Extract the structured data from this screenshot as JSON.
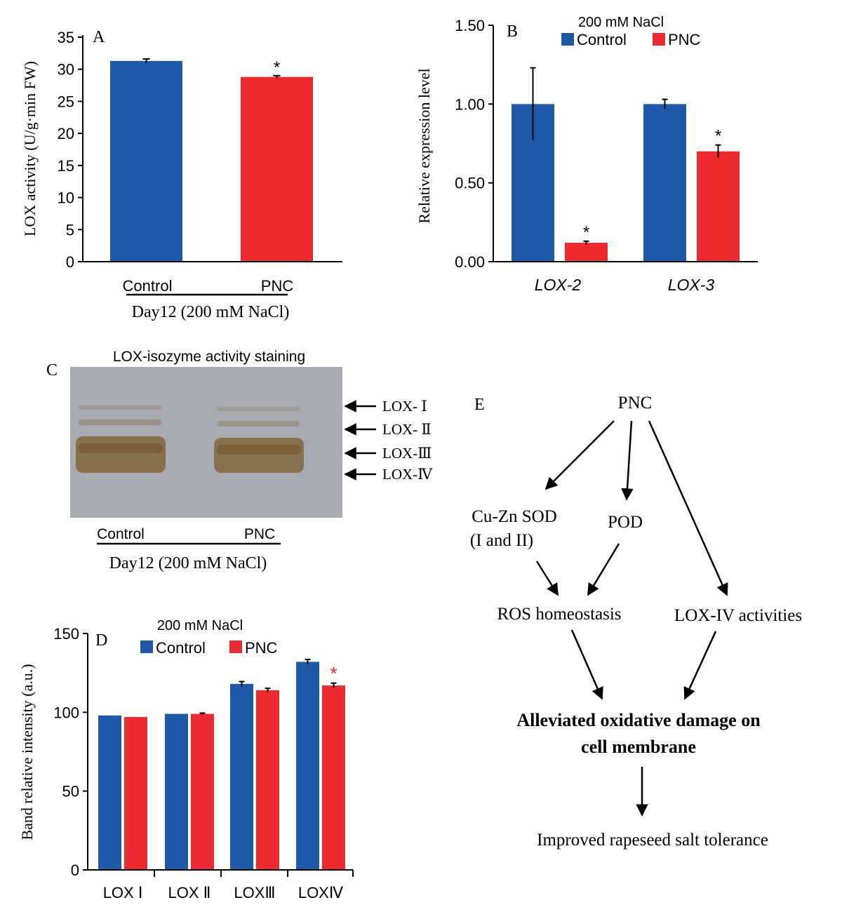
{
  "colors": {
    "control": "#1f5aa8",
    "pnc": "#ec2a30",
    "gel_bg": "#a7aab0",
    "band": "#7c5d2a"
  },
  "chart_data": [
    {
      "id": "A",
      "type": "bar",
      "panel_label": "A",
      "categories": [
        "Control",
        "PNC"
      ],
      "values": [
        31.3,
        28.8
      ],
      "errors": [
        0.3,
        0.2
      ],
      "significance": [
        "",
        "*"
      ],
      "ylabel": "LOX activity (U/g·min FW)",
      "xlabel": "Day12 (200 mM NaCl)",
      "yticks": [
        "0",
        "5",
        "10",
        "15",
        "20",
        "25",
        "30",
        "35"
      ],
      "ylim": [
        0,
        35
      ]
    },
    {
      "id": "B",
      "type": "bar",
      "panel_label": "B",
      "title": "200 mM NaCl",
      "categories": [
        "LOX-2",
        "LOX-3"
      ],
      "series": [
        {
          "name": "Control",
          "values": [
            1.0,
            1.0
          ],
          "errors": [
            0.23,
            0.03
          ],
          "significance": [
            "",
            ""
          ]
        },
        {
          "name": "PNC",
          "values": [
            0.12,
            0.7
          ],
          "errors": [
            0.01,
            0.04
          ],
          "significance": [
            "*",
            "*"
          ]
        }
      ],
      "ylabel": "Relative expression level",
      "yticks": [
        "0.00",
        "0.50",
        "1.00",
        "1.50"
      ],
      "ylim": [
        0,
        1.5
      ],
      "legend": "top"
    },
    {
      "id": "D",
      "type": "bar",
      "panel_label": "D",
      "title": "200 mM NaCl",
      "categories": [
        "LOX Ⅰ",
        "LOX Ⅱ",
        "LOXⅢ",
        "LOXⅣ"
      ],
      "series": [
        {
          "name": "Control",
          "values": [
            98,
            99,
            118,
            132
          ],
          "errors": [
            0,
            0,
            1.5,
            1.5
          ],
          "significance": [
            "",
            "",
            "",
            ""
          ]
        },
        {
          "name": "PNC",
          "values": [
            97,
            99,
            114,
            117
          ],
          "errors": [
            0,
            0.5,
            1.2,
            1.5
          ],
          "significance": [
            "",
            "",
            "",
            "*"
          ]
        }
      ],
      "ylabel": "Band relative intensity (a.u.)",
      "yticks": [
        "0",
        "50",
        "100",
        "150"
      ],
      "ylim": [
        0,
        150
      ],
      "legend": "top"
    }
  ],
  "gel": {
    "panel_label": "C",
    "title": "LOX-isozyme activity staining",
    "bands": [
      "LOX- Ⅰ",
      "LOX- Ⅱ",
      "LOX-Ⅲ",
      "LOX-Ⅳ"
    ],
    "lanes": [
      "Control",
      "PNC"
    ],
    "caption": "Day12 (200 mM NaCl)"
  },
  "diagram": {
    "panel_label": "E",
    "nodes": {
      "pnc": "PNC",
      "sod_line1": "Cu-Zn SOD",
      "sod_line2": "(I and II)",
      "pod": "POD",
      "ros": "ROS homeostasis",
      "lox": "LOX-IV activities",
      "damage_line1": "Alleviated oxidative damage on",
      "damage_line2": "cell membrane",
      "tolerance": "Improved rapeseed salt tolerance"
    }
  }
}
